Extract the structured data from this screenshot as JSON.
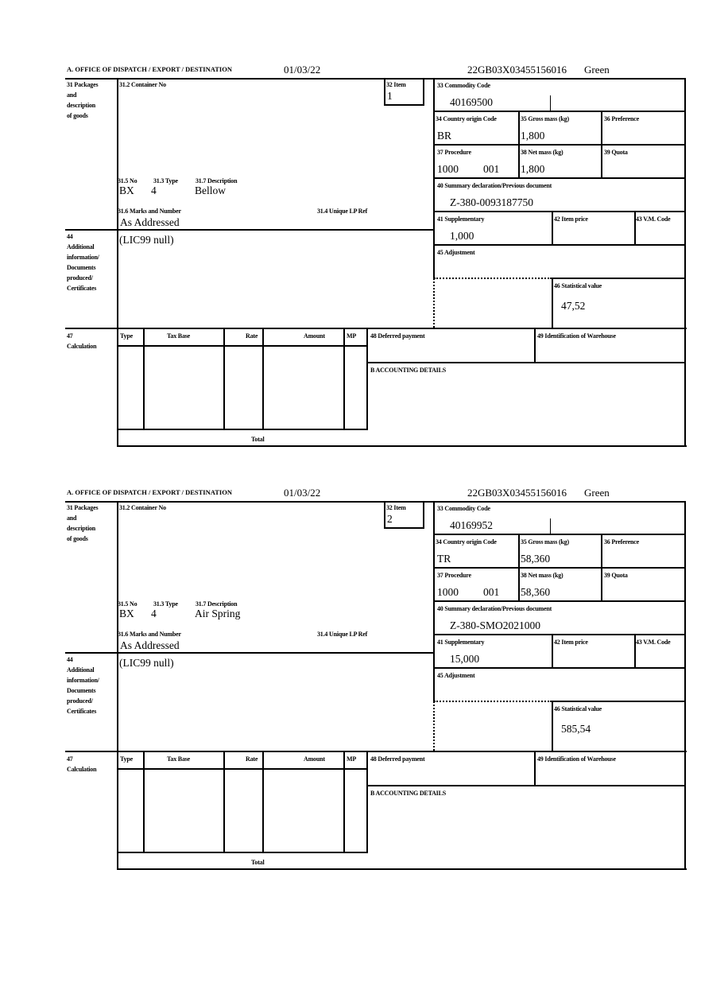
{
  "form": {
    "header_office": "A. OFFICE OF DISPATCH / EXPORT / DESTINATION",
    "label_31": [
      "31 Packages",
      "and",
      "description",
      "of goods"
    ],
    "label_31_2": "31.2 Container No",
    "label_32": "32 Item",
    "label_31_5": "31.5 No",
    "label_31_3": "31.3 Type",
    "label_31_7": "31.7 Description",
    "label_31_6": "31.6 Marks and Number",
    "label_31_4": "31.4 Unique LP Ref",
    "label_33": "33 Commodity Code",
    "label_34": "34 Country origin Code",
    "label_35": "35 Gross mass (kg)",
    "label_36": "36 Preference",
    "label_37": "37 Procedure",
    "label_38": "38 Net mass (kg)",
    "label_39": "39 Quota",
    "label_40": "40 Summary declaration/Previous document",
    "label_41": "41 Supplementary",
    "label_42": "42 Item price",
    "label_43": "43 V.M. Code",
    "label_44": [
      "44",
      "Additional",
      "information/",
      "Documents",
      "produced/",
      "Certificates"
    ],
    "label_45": "45 Adjustment",
    "label_46": "46 Statistical value",
    "label_47": [
      "47",
      "Calculation"
    ],
    "calc_headers": [
      "Type",
      "Tax Base",
      "Rate",
      "Amount",
      "MP"
    ],
    "calc_total": "Total",
    "label_48": "48 Deferred payment",
    "label_49": "49 Identification of Warehouse",
    "label_b": "B ACCOUNTING DETAILS"
  },
  "items": [
    {
      "date": "01/03/22",
      "reference": "22GB03X03455156016",
      "route": "Green",
      "item_no": "1",
      "no": "BX",
      "type": "4",
      "description": "Bellow",
      "marks": "As Addressed",
      "commodity_code": "40169500",
      "country_origin": "BR",
      "gross_mass": "1,800",
      "procedure": "1000",
      "procedure_add": "001",
      "net_mass": "1,800",
      "previous_document": "Z-380-0093187750",
      "supplementary": "1,000",
      "additional_info": "(LIC99 null)",
      "statistical_value": "47,52"
    },
    {
      "date": "01/03/22",
      "reference": "22GB03X03455156016",
      "route": "Green",
      "item_no": "2",
      "no": "BX",
      "type": "4",
      "description": "Air Spring",
      "marks": "As Addressed",
      "commodity_code": "40169952",
      "country_origin": "TR",
      "gross_mass": "58,360",
      "procedure": "1000",
      "procedure_add": "001",
      "net_mass": "58,360",
      "previous_document": "Z-380-SMO2021000",
      "supplementary": "15,000",
      "additional_info": "(LIC99 null)",
      "statistical_value": "585,54"
    }
  ]
}
